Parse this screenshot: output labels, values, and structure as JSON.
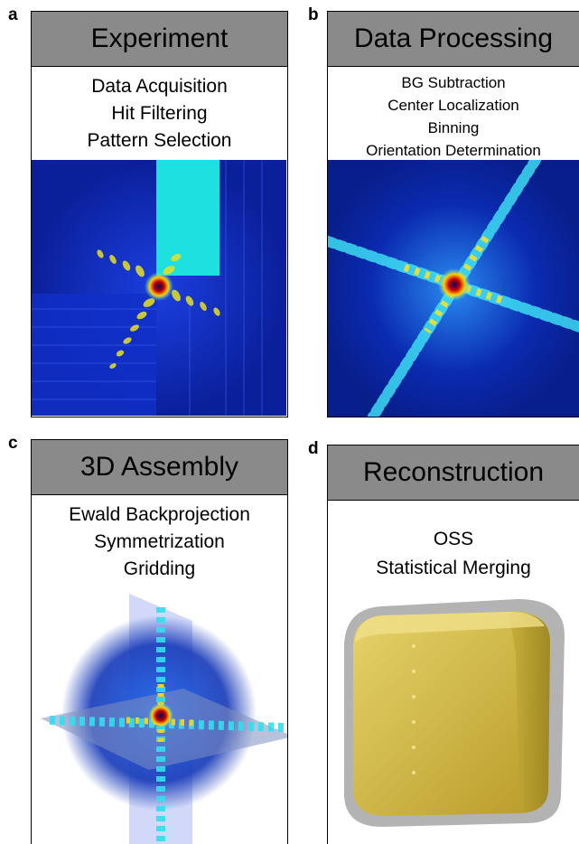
{
  "panels": {
    "a": {
      "letter": "a",
      "title": "Experiment",
      "steps": [
        "Data Acquisition",
        "Hit Filtering",
        "Pattern Selection"
      ]
    },
    "b": {
      "letter": "b",
      "title": "Data Processing",
      "steps": [
        "BG Subtraction",
        "Center Localization",
        "Binning",
        "Orientation Determination"
      ]
    },
    "c": {
      "letter": "c",
      "title": "3D Assembly",
      "steps": [
        "Ewald Backprojection",
        "Symmetrization",
        "Gridding"
      ]
    },
    "d": {
      "letter": "d",
      "title": "Reconstruction",
      "steps": [
        "OSS",
        "Statistical Merging"
      ]
    }
  },
  "colors": {
    "header": "#8a8a8a",
    "pattern_bg": "#0a2ab0",
    "cube": "#d9c24a"
  }
}
